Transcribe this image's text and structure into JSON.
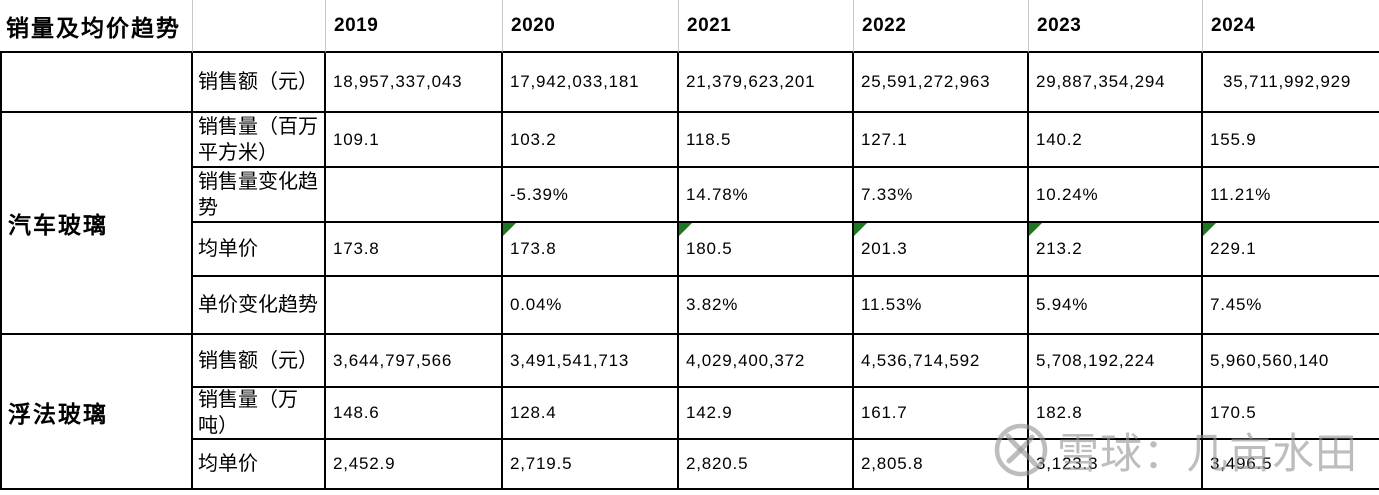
{
  "chart_data": {
    "type": "table",
    "title": "销量及均价趋势",
    "columns": [
      "2019",
      "2020",
      "2021",
      "2022",
      "2023",
      "2024"
    ],
    "row_groups": [
      {
        "group": "",
        "rows": [
          {
            "label": "销售额（元）",
            "values": [
              "18,957,337,043",
              "17,942,033,181",
              "21,379,623,201",
              "25,591,272,963",
              "29,887,354,294",
              "35,711,992,929"
            ]
          }
        ]
      },
      {
        "group": "汽车玻璃",
        "rows": [
          {
            "label": "销售量（百万平方米）",
            "values": [
              "109.1",
              "103.2",
              "118.5",
              "127.1",
              "140.2",
              "155.9"
            ]
          },
          {
            "label": "销售量变化趋势",
            "values": [
              "",
              "-5.39%",
              "14.78%",
              "7.33%",
              "10.24%",
              "11.21%"
            ]
          },
          {
            "label": "均单价",
            "values": [
              "173.8",
              "173.8",
              "180.5",
              "201.3",
              "213.2",
              "229.1"
            ],
            "green_triangle_years": [
              "2020",
              "2021",
              "2022",
              "2023",
              "2024"
            ]
          },
          {
            "label": "单价变化趋势",
            "values": [
              "",
              "0.04%",
              "3.82%",
              "11.53%",
              "5.94%",
              "7.45%"
            ]
          }
        ]
      },
      {
        "group": "浮法玻璃",
        "rows": [
          {
            "label": "销售额（元）",
            "values": [
              "3,644,797,566",
              "3,491,541,713",
              "4,029,400,372",
              "4,536,714,592",
              "5,708,192,224",
              "5,960,560,140"
            ]
          },
          {
            "label": "销售量（万吨）",
            "values": [
              "148.6",
              "128.4",
              "142.9",
              "161.7",
              "182.8",
              "170.5"
            ]
          },
          {
            "label": "均单价",
            "values": [
              "2,452.9",
              "2,719.5",
              "2,820.5",
              "2,805.8",
              "3,123.3",
              "3,496.5"
            ]
          }
        ]
      }
    ]
  },
  "watermark": {
    "text": "雪球：几亩水田",
    "logo_icon": "xueqiu-logo-icon"
  },
  "colors": {
    "triangle_green": "#1f7a1f",
    "body_grid_line": "#000000",
    "header_grid_line": "#c9c9c9",
    "watermark_gray": "#949494",
    "background": "#ffffff"
  }
}
